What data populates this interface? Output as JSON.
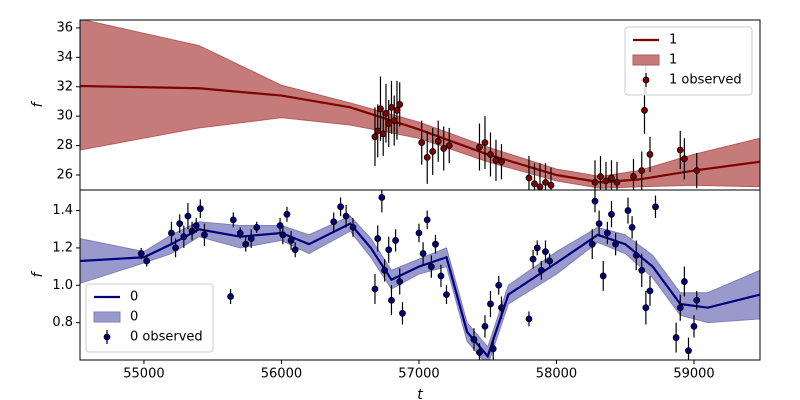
{
  "chart_data": [
    {
      "type": "line",
      "ylabel": "f",
      "legend": "upper right",
      "xlim": [
        54535,
        59480
      ],
      "ylim": [
        24.98,
        36.54
      ],
      "yticks": [
        26,
        28,
        30,
        32,
        34,
        36
      ],
      "series": [
        {
          "name": "1",
          "type": "line",
          "color": "#800000",
          "x": [
            54535,
            55400,
            56000,
            56500,
            57000,
            57500,
            58000,
            58320,
            58600,
            59000,
            59480
          ],
          "values": [
            32.05,
            31.9,
            31.4,
            30.6,
            29.1,
            27.4,
            26.0,
            25.5,
            25.7,
            26.3,
            26.9
          ]
        },
        {
          "name": "1",
          "type": "band",
          "color": "#b85a5a",
          "x": [
            54535,
            55400,
            56000,
            56500,
            57000,
            57500,
            58000,
            58320,
            58600,
            59000,
            59480
          ],
          "lower": [
            27.7,
            29.2,
            29.9,
            29.4,
            28.5,
            26.9,
            25.6,
            25.1,
            25.2,
            25.3,
            25.2
          ],
          "upper": [
            36.6,
            34.8,
            32.1,
            30.9,
            29.6,
            27.9,
            26.4,
            25.9,
            26.3,
            27.4,
            28.5
          ]
        },
        {
          "name": "1 observed",
          "type": "errorbar",
          "color": "#800000",
          "x": [
            56680,
            56700,
            56720,
            56740,
            56760,
            56780,
            56800,
            56820,
            56840,
            56860,
            57020,
            57060,
            57100,
            57140,
            57180,
            57220,
            57440,
            57480,
            57520,
            57560,
            57600,
            57800,
            57840,
            57880,
            57920,
            57960,
            58280,
            58320,
            58360,
            58400,
            58440,
            58560,
            58620,
            58640,
            58650,
            58680,
            58900,
            58930,
            59020
          ],
          "values": [
            28.6,
            29.0,
            30.5,
            28.8,
            30.2,
            29.5,
            30.6,
            29.7,
            30.4,
            30.8,
            28.2,
            27.2,
            27.6,
            28.3,
            27.8,
            28.0,
            27.9,
            28.2,
            27.4,
            27.0,
            26.9,
            25.8,
            25.4,
            25.2,
            25.5,
            25.3,
            25.5,
            25.9,
            25.6,
            25.8,
            25.5,
            25.9,
            26.3,
            30.4,
            32.5,
            27.4,
            27.7,
            27.1,
            26.3
          ],
          "errors": [
            2.0,
            1.8,
            2.2,
            1.5,
            2.0,
            1.6,
            1.8,
            1.7,
            2.0,
            1.5,
            1.5,
            1.8,
            1.6,
            1.4,
            1.5,
            1.2,
            1.6,
            1.8,
            1.5,
            1.4,
            1.2,
            1.5,
            1.4,
            1.6,
            1.3,
            1.2,
            1.5,
            1.4,
            1.3,
            1.2,
            1.4,
            1.2,
            1.3,
            1.6,
            1.0,
            1.2,
            1.3,
            1.4,
            1.2
          ]
        }
      ]
    },
    {
      "type": "line",
      "ylabel": "f",
      "xlabel": "t",
      "legend": "lower left",
      "xlim": [
        54535,
        59480
      ],
      "ylim": [
        0.6,
        1.51
      ],
      "xticks": [
        55000,
        56000,
        57000,
        58000,
        59000
      ],
      "yticks": [
        0.8,
        {
          "value": 1.0,
          "label": "1.0"
        },
        1.2,
        1.4
      ],
      "series": [
        {
          "name": "0",
          "type": "line",
          "color": "#000080",
          "x": [
            54535,
            55000,
            55200,
            55400,
            55700,
            56000,
            56200,
            56500,
            56650,
            56800,
            57000,
            57200,
            57350,
            57500,
            57650,
            58000,
            58300,
            58500,
            58700,
            58900,
            59100,
            59480
          ],
          "values": [
            1.13,
            1.15,
            1.22,
            1.3,
            1.26,
            1.28,
            1.22,
            1.33,
            1.2,
            1.03,
            1.1,
            1.15,
            0.75,
            0.62,
            0.95,
            1.12,
            1.27,
            1.22,
            1.1,
            0.9,
            0.88,
            0.95
          ]
        },
        {
          "name": "0",
          "type": "band",
          "color": "#7f7fbf",
          "x": [
            54535,
            55000,
            55200,
            55400,
            55700,
            56000,
            56200,
            56500,
            56650,
            56800,
            57000,
            57200,
            57350,
            57500,
            57650,
            58000,
            58300,
            58500,
            58700,
            58900,
            59100,
            59480
          ],
          "lower": [
            1.01,
            1.12,
            1.17,
            1.26,
            1.2,
            1.24,
            1.17,
            1.29,
            1.15,
            0.98,
            1.06,
            1.1,
            0.7,
            0.57,
            0.9,
            1.06,
            1.23,
            1.17,
            1.04,
            0.84,
            0.8,
            0.82
          ],
          "upper": [
            1.25,
            1.18,
            1.27,
            1.34,
            1.32,
            1.32,
            1.27,
            1.37,
            1.25,
            1.08,
            1.14,
            1.2,
            0.8,
            0.67,
            1.0,
            1.18,
            1.31,
            1.27,
            1.16,
            0.96,
            0.96,
            1.08
          ]
        },
        {
          "name": "0 observed",
          "type": "errorbar",
          "color": "#000080",
          "x": [
            54980,
            55020,
            55200,
            55230,
            55260,
            55290,
            55320,
            55350,
            55380,
            55410,
            55440,
            55630,
            55650,
            55700,
            55740,
            55780,
            55820,
            55990,
            56010,
            56040,
            56070,
            56100,
            56380,
            56430,
            56470,
            56520,
            56680,
            56700,
            56730,
            56750,
            56780,
            56800,
            56830,
            56860,
            56880,
            57000,
            57030,
            57060,
            57090,
            57120,
            57160,
            57200,
            57400,
            57440,
            57480,
            57520,
            57540,
            57580,
            57600,
            57800,
            57830,
            57860,
            57890,
            57920,
            57950,
            58260,
            58280,
            58310,
            58340,
            58370,
            58400,
            58430,
            58520,
            58550,
            58580,
            58620,
            58650,
            58680,
            58720,
            58870,
            58900,
            58930,
            58960,
            59000,
            59020
          ],
          "values": [
            1.17,
            1.13,
            1.28,
            1.2,
            1.33,
            1.26,
            1.37,
            1.29,
            1.32,
            1.41,
            1.27,
            0.94,
            1.35,
            1.28,
            1.22,
            1.25,
            1.31,
            1.32,
            1.27,
            1.38,
            1.24,
            1.19,
            1.34,
            1.42,
            1.37,
            1.31,
            0.98,
            1.25,
            1.47,
            1.08,
            1.19,
            0.92,
            1.24,
            1.02,
            0.85,
            1.28,
            1.17,
            1.35,
            1.1,
            1.22,
            1.05,
            0.95,
            0.71,
            0.64,
            0.78,
            0.9,
            0.66,
            1.0,
            0.88,
            0.82,
            1.14,
            1.2,
            1.08,
            1.18,
            1.13,
            1.22,
            1.45,
            1.33,
            1.05,
            1.28,
            1.38,
            1.22,
            1.4,
            1.31,
            1.16,
            1.08,
            0.88,
            0.97,
            1.42,
            0.72,
            0.88,
            1.02,
            0.65,
            0.78,
            0.92
          ],
          "errors": [
            0.03,
            0.03,
            0.06,
            0.05,
            0.05,
            0.06,
            0.07,
            0.05,
            0.04,
            0.05,
            0.06,
            0.04,
            0.04,
            0.03,
            0.04,
            0.05,
            0.03,
            0.04,
            0.05,
            0.04,
            0.05,
            0.04,
            0.05,
            0.05,
            0.06,
            0.05,
            0.08,
            0.07,
            0.08,
            0.06,
            0.07,
            0.08,
            0.06,
            0.07,
            0.06,
            0.05,
            0.06,
            0.05,
            0.06,
            0.05,
            0.06,
            0.05,
            0.06,
            0.05,
            0.06,
            0.07,
            0.06,
            0.05,
            0.06,
            0.04,
            0.05,
            0.04,
            0.05,
            0.06,
            0.04,
            0.08,
            0.06,
            0.07,
            0.08,
            0.06,
            0.07,
            0.06,
            0.07,
            0.06,
            0.08,
            0.09,
            0.09,
            0.08,
            0.06,
            0.08,
            0.07,
            0.08,
            0.07,
            0.06,
            0.05
          ]
        }
      ]
    }
  ]
}
